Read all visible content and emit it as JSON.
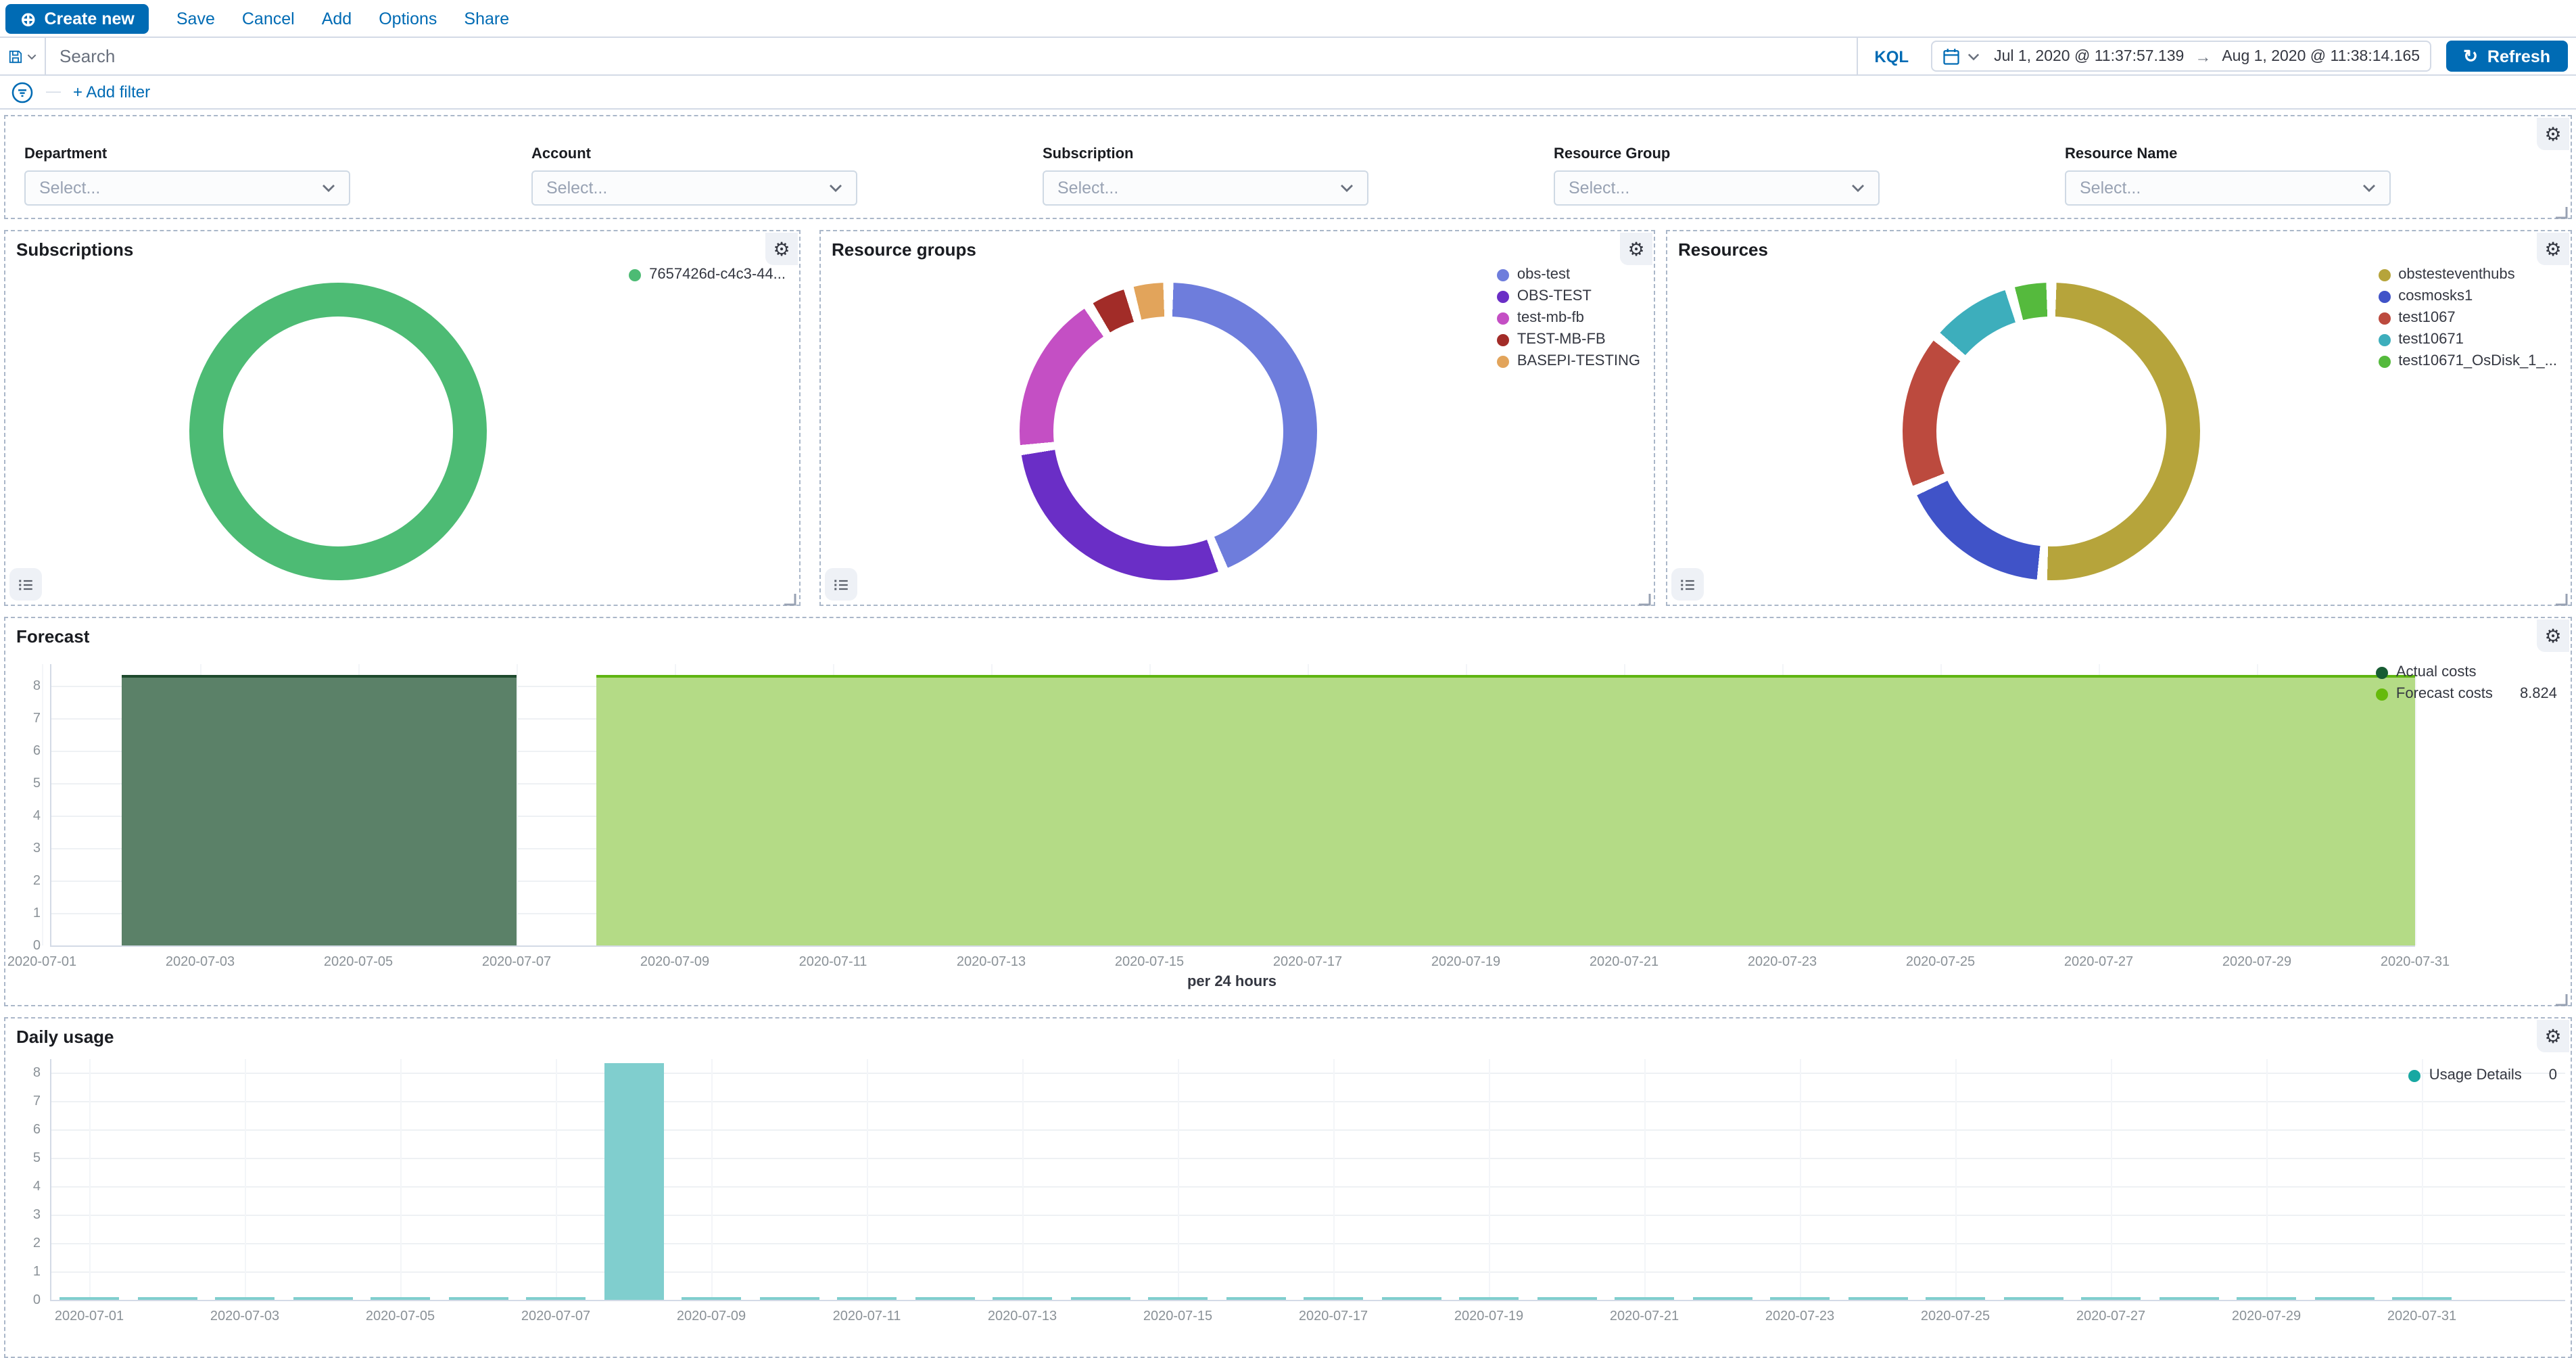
{
  "toolbar": {
    "create_new_label": "Create new",
    "menu": [
      "Save",
      "Cancel",
      "Add",
      "Options",
      "Share"
    ]
  },
  "query_bar": {
    "search_placeholder": "Search",
    "kql_label": "KQL",
    "date_from": "Jul 1, 2020 @ 11:37:57.139",
    "date_to": "Aug 1, 2020 @ 11:38:14.165",
    "refresh_label": "Refresh"
  },
  "filter_bar": {
    "add_filter_label": "+ Add filter"
  },
  "filter_controls": {
    "fields": [
      {
        "label": "Department",
        "placeholder": "Select..."
      },
      {
        "label": "Account",
        "placeholder": "Select..."
      },
      {
        "label": "Subscription",
        "placeholder": "Select..."
      },
      {
        "label": "Resource Group",
        "placeholder": "Select..."
      },
      {
        "label": "Resource Name",
        "placeholder": "Select..."
      }
    ]
  },
  "icons": {
    "create_new_plus": "plus-in-circle ⊕",
    "saved_query": "floppy-disk outline",
    "chevron_down": "thin chevron v",
    "calendar": "calendar outline",
    "refresh": "↻",
    "filter": "circle with stacked lines",
    "gear": "⚙",
    "legend_toggle": "list lines with bullets",
    "resize_handle": "corner L"
  },
  "colors": {
    "primary": "#006bb4",
    "panel_border_dashed": "#aab7c9",
    "divider": "#d3dae6",
    "title_text": "#1a1c21",
    "axis_text": "#8a9197"
  },
  "chart_data": [
    {
      "type": "pie",
      "title": "Subscriptions",
      "donut": true,
      "legend_position": "top-right",
      "series": [
        {
          "name": "7657426d-c4c3-44...",
          "value": 100,
          "color": "#4dbb74"
        }
      ]
    },
    {
      "type": "pie",
      "title": "Resource groups",
      "donut": true,
      "legend_position": "top-right",
      "series": [
        {
          "name": "obs-test",
          "value": 44,
          "color": "#6e7ddc"
        },
        {
          "name": "OBS-TEST",
          "value": 29,
          "color": "#6a2ec6"
        },
        {
          "name": "test-mb-fb",
          "value": 18,
          "color": "#c44fc4"
        },
        {
          "name": "TEST-MB-FB",
          "value": 4.7,
          "color": "#a22c28"
        },
        {
          "name": "BASEPI-TESTING",
          "value": 4.3,
          "color": "#e2a45b"
        }
      ]
    },
    {
      "type": "pie",
      "title": "Resources",
      "donut": true,
      "legend_position": "top-right",
      "series": [
        {
          "name": "obstesteventhubs",
          "value": 51,
          "color": "#b6a43b"
        },
        {
          "name": "cosmosks1",
          "value": 17.5,
          "color": "#4053c8"
        },
        {
          "name": "test1067",
          "value": 17.5,
          "color": "#bc4a3e"
        },
        {
          "name": "test10671",
          "value": 9.5,
          "color": "#3daebc"
        },
        {
          "name": "test10671_OsDisk_1_...",
          "value": 4.5,
          "color": "#55ba3d"
        }
      ]
    },
    {
      "type": "area",
      "title": "Forecast",
      "xlabel": "per 24 hours",
      "ylim": [
        0,
        8.8
      ],
      "grid": true,
      "legend_position": "right",
      "y_ticks": [
        0,
        1,
        2,
        3,
        4,
        5,
        6,
        7,
        8
      ],
      "x_tick_labels": [
        "2020-07-01",
        "2020-07-03",
        "2020-07-05",
        "2020-07-07",
        "2020-07-09",
        "2020-07-11",
        "2020-07-13",
        "2020-07-15",
        "2020-07-17",
        "2020-07-19",
        "2020-07-21",
        "2020-07-23",
        "2020-07-25",
        "2020-07-27",
        "2020-07-29",
        "2020-07-31"
      ],
      "series": [
        {
          "name": "Actual costs",
          "from": "2020-07-02",
          "to": "2020-07-07",
          "value": 8.35,
          "fill": "#5b8168",
          "line": "#1e4a2d",
          "legend_dot": "#175c33",
          "legend_value": ""
        },
        {
          "name": "Forecast costs",
          "from": "2020-07-08",
          "to": "2020-07-31",
          "value": 8.35,
          "fill": "#b4db86",
          "line": "#5fb412",
          "legend_dot": "#65ba0b",
          "legend_value": "8.824"
        }
      ]
    },
    {
      "type": "bar",
      "title": "Daily usage",
      "ylim": [
        0,
        8.8
      ],
      "grid": true,
      "legend_position": "right",
      "bar_color": "#80cece",
      "y_ticks": [
        0,
        1,
        2,
        3,
        4,
        5,
        6,
        7,
        8
      ],
      "categories": [
        "2020-07-01",
        "2020-07-02",
        "2020-07-03",
        "2020-07-04",
        "2020-07-05",
        "2020-07-06",
        "2020-07-07",
        "2020-07-08",
        "2020-07-09",
        "2020-07-10",
        "2020-07-11",
        "2020-07-12",
        "2020-07-13",
        "2020-07-14",
        "2020-07-15",
        "2020-07-16",
        "2020-07-17",
        "2020-07-18",
        "2020-07-19",
        "2020-07-20",
        "2020-07-21",
        "2020-07-22",
        "2020-07-23",
        "2020-07-24",
        "2020-07-25",
        "2020-07-26",
        "2020-07-27",
        "2020-07-28",
        "2020-07-29",
        "2020-07-30",
        "2020-07-31"
      ],
      "values": [
        0.05,
        0.05,
        0.05,
        0.05,
        0.05,
        0.05,
        0.05,
        8.35,
        0.05,
        0.05,
        0.05,
        0.05,
        0.05,
        0.05,
        0.05,
        0.05,
        0.05,
        0.05,
        0.05,
        0.05,
        0.05,
        0.05,
        0.05,
        0.05,
        0.05,
        0.05,
        0.05,
        0.05,
        0.05,
        0.05,
        0.05
      ],
      "x_tick_labels": [
        "2020-07-01",
        "2020-07-03",
        "2020-07-05",
        "2020-07-07",
        "2020-07-09",
        "2020-07-11",
        "2020-07-13",
        "2020-07-15",
        "2020-07-17",
        "2020-07-19",
        "2020-07-21",
        "2020-07-23",
        "2020-07-25",
        "2020-07-27",
        "2020-07-29",
        "2020-07-31"
      ],
      "series": [
        {
          "name": "Usage Details",
          "color": "#18a8a2",
          "legend_value": "0"
        }
      ]
    }
  ]
}
